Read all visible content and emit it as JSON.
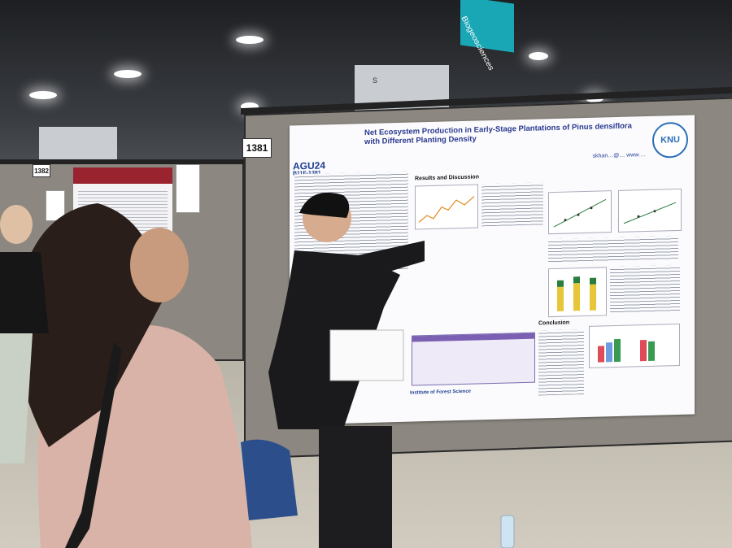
{
  "scene": {
    "sign_text": "Biogeosciences",
    "booth_numbers": [
      "1381",
      "1382"
    ],
    "pillar_label": "S"
  },
  "poster": {
    "title": "Net Ecosystem Production in Early-Stage Plantations of Pinus densiflora with Different Planting Density",
    "conference": "AGU24",
    "poster_id": "B11F-1381",
    "university_logo": "KNU",
    "contact": "skhan…@…   www.…",
    "section_results": "Results and Discussion",
    "section_conclusion": "Conclusion",
    "footer_text": "Institute of Forest Science"
  },
  "colors": {
    "sign": "#1aa7b5",
    "poster_title": "#2b3a8f",
    "table_header": "#7b5fb3"
  }
}
